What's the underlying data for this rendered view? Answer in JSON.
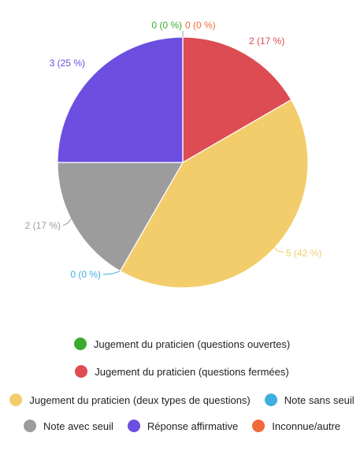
{
  "chart_data": {
    "type": "pie",
    "title": "",
    "legend_position": "bottom",
    "slices": [
      {
        "name": "Jugement du praticien (questions ouvertes)",
        "value": 0,
        "label": "0 (0 %)",
        "color": "#3bab2f"
      },
      {
        "name": "Jugement du praticien (questions fermées)",
        "value": 2,
        "label": "2 (17 %)",
        "color": "#dc4c52"
      },
      {
        "name": "Jugement du praticien (deux types de questions)",
        "value": 5,
        "label": "5 (42 %)",
        "color": "#f3cd6b"
      },
      {
        "name": "Note sans seuil",
        "value": 0,
        "label": "0 (0 %)",
        "color": "#40afe0"
      },
      {
        "name": "Note avec seuil",
        "value": 2,
        "label": "2 (17 %)",
        "color": "#9c9c9c"
      },
      {
        "name": "Réponse affirmative",
        "value": 3,
        "label": "3 (25 %)",
        "color": "#6c4ee0"
      },
      {
        "name": "Inconnue/autre",
        "value": 0,
        "label": "0 (0 %)",
        "color": "#f06a3a"
      }
    ]
  },
  "legend": {
    "rows": [
      [
        0
      ],
      [
        1
      ],
      [
        2,
        3
      ],
      [
        4,
        5,
        6
      ]
    ]
  }
}
